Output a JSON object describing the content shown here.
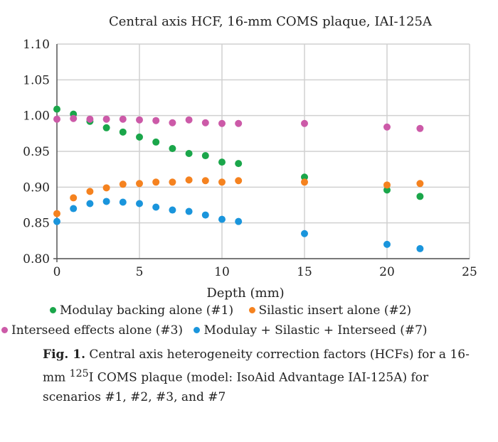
{
  "chart_data": {
    "type": "scatter",
    "title": "Central axis HCF, 16-mm COMS plaque, IAI-125A",
    "xlabel": "Depth (mm)",
    "ylabel": "",
    "xlim": [
      0,
      25
    ],
    "ylim": [
      0.8,
      1.1
    ],
    "xticks": [
      "0",
      "5",
      "10",
      "15",
      "20",
      "25"
    ],
    "yticks": [
      "0.80",
      "0.85",
      "0.90",
      "0.95",
      "1.00",
      "1.05",
      "1.10"
    ],
    "grid": true,
    "legend_placement": "bottom",
    "x": [
      0,
      1,
      2,
      3,
      4,
      5,
      6,
      7,
      8,
      9,
      10,
      11,
      15,
      20,
      22
    ],
    "series": [
      {
        "name": "Modulay backing alone (#1)",
        "color": "#1aa64a",
        "values": [
          1.009,
          1.002,
          0.992,
          0.983,
          0.977,
          0.97,
          0.963,
          0.954,
          0.947,
          0.944,
          0.935,
          0.933,
          0.914,
          0.896,
          0.887
        ]
      },
      {
        "name": "Silastic insert alone (#2)",
        "color": "#f5821f",
        "values": [
          0.863,
          0.885,
          0.894,
          0.899,
          0.904,
          0.905,
          0.907,
          0.907,
          0.91,
          0.909,
          0.907,
          0.909,
          0.907,
          0.903,
          0.905
        ]
      },
      {
        "name": "Interseed effects alone (#3)",
        "color": "#cc5aa8",
        "values": [
          0.995,
          0.996,
          0.995,
          0.995,
          0.995,
          0.994,
          0.993,
          0.99,
          0.994,
          0.99,
          0.989,
          0.989,
          0.989,
          0.984,
          0.982
        ]
      },
      {
        "name": "Modulay + Silastic + Interseed (#7)",
        "color": "#1a95dc",
        "values": [
          0.852,
          0.87,
          0.877,
          0.88,
          0.879,
          0.877,
          0.872,
          0.868,
          0.866,
          0.861,
          0.855,
          0.852,
          0.835,
          0.82,
          0.814
        ]
      }
    ]
  },
  "caption": {
    "label": "Fig. 1.",
    "pre": " Central axis heterogeneity correction factors (HCFs) for a 16-mm ",
    "sup": "125",
    "post": "I COMS plaque (model: IsoAid Advantage IAI-125A) for scenarios #1, #2, #3, and #7"
  }
}
